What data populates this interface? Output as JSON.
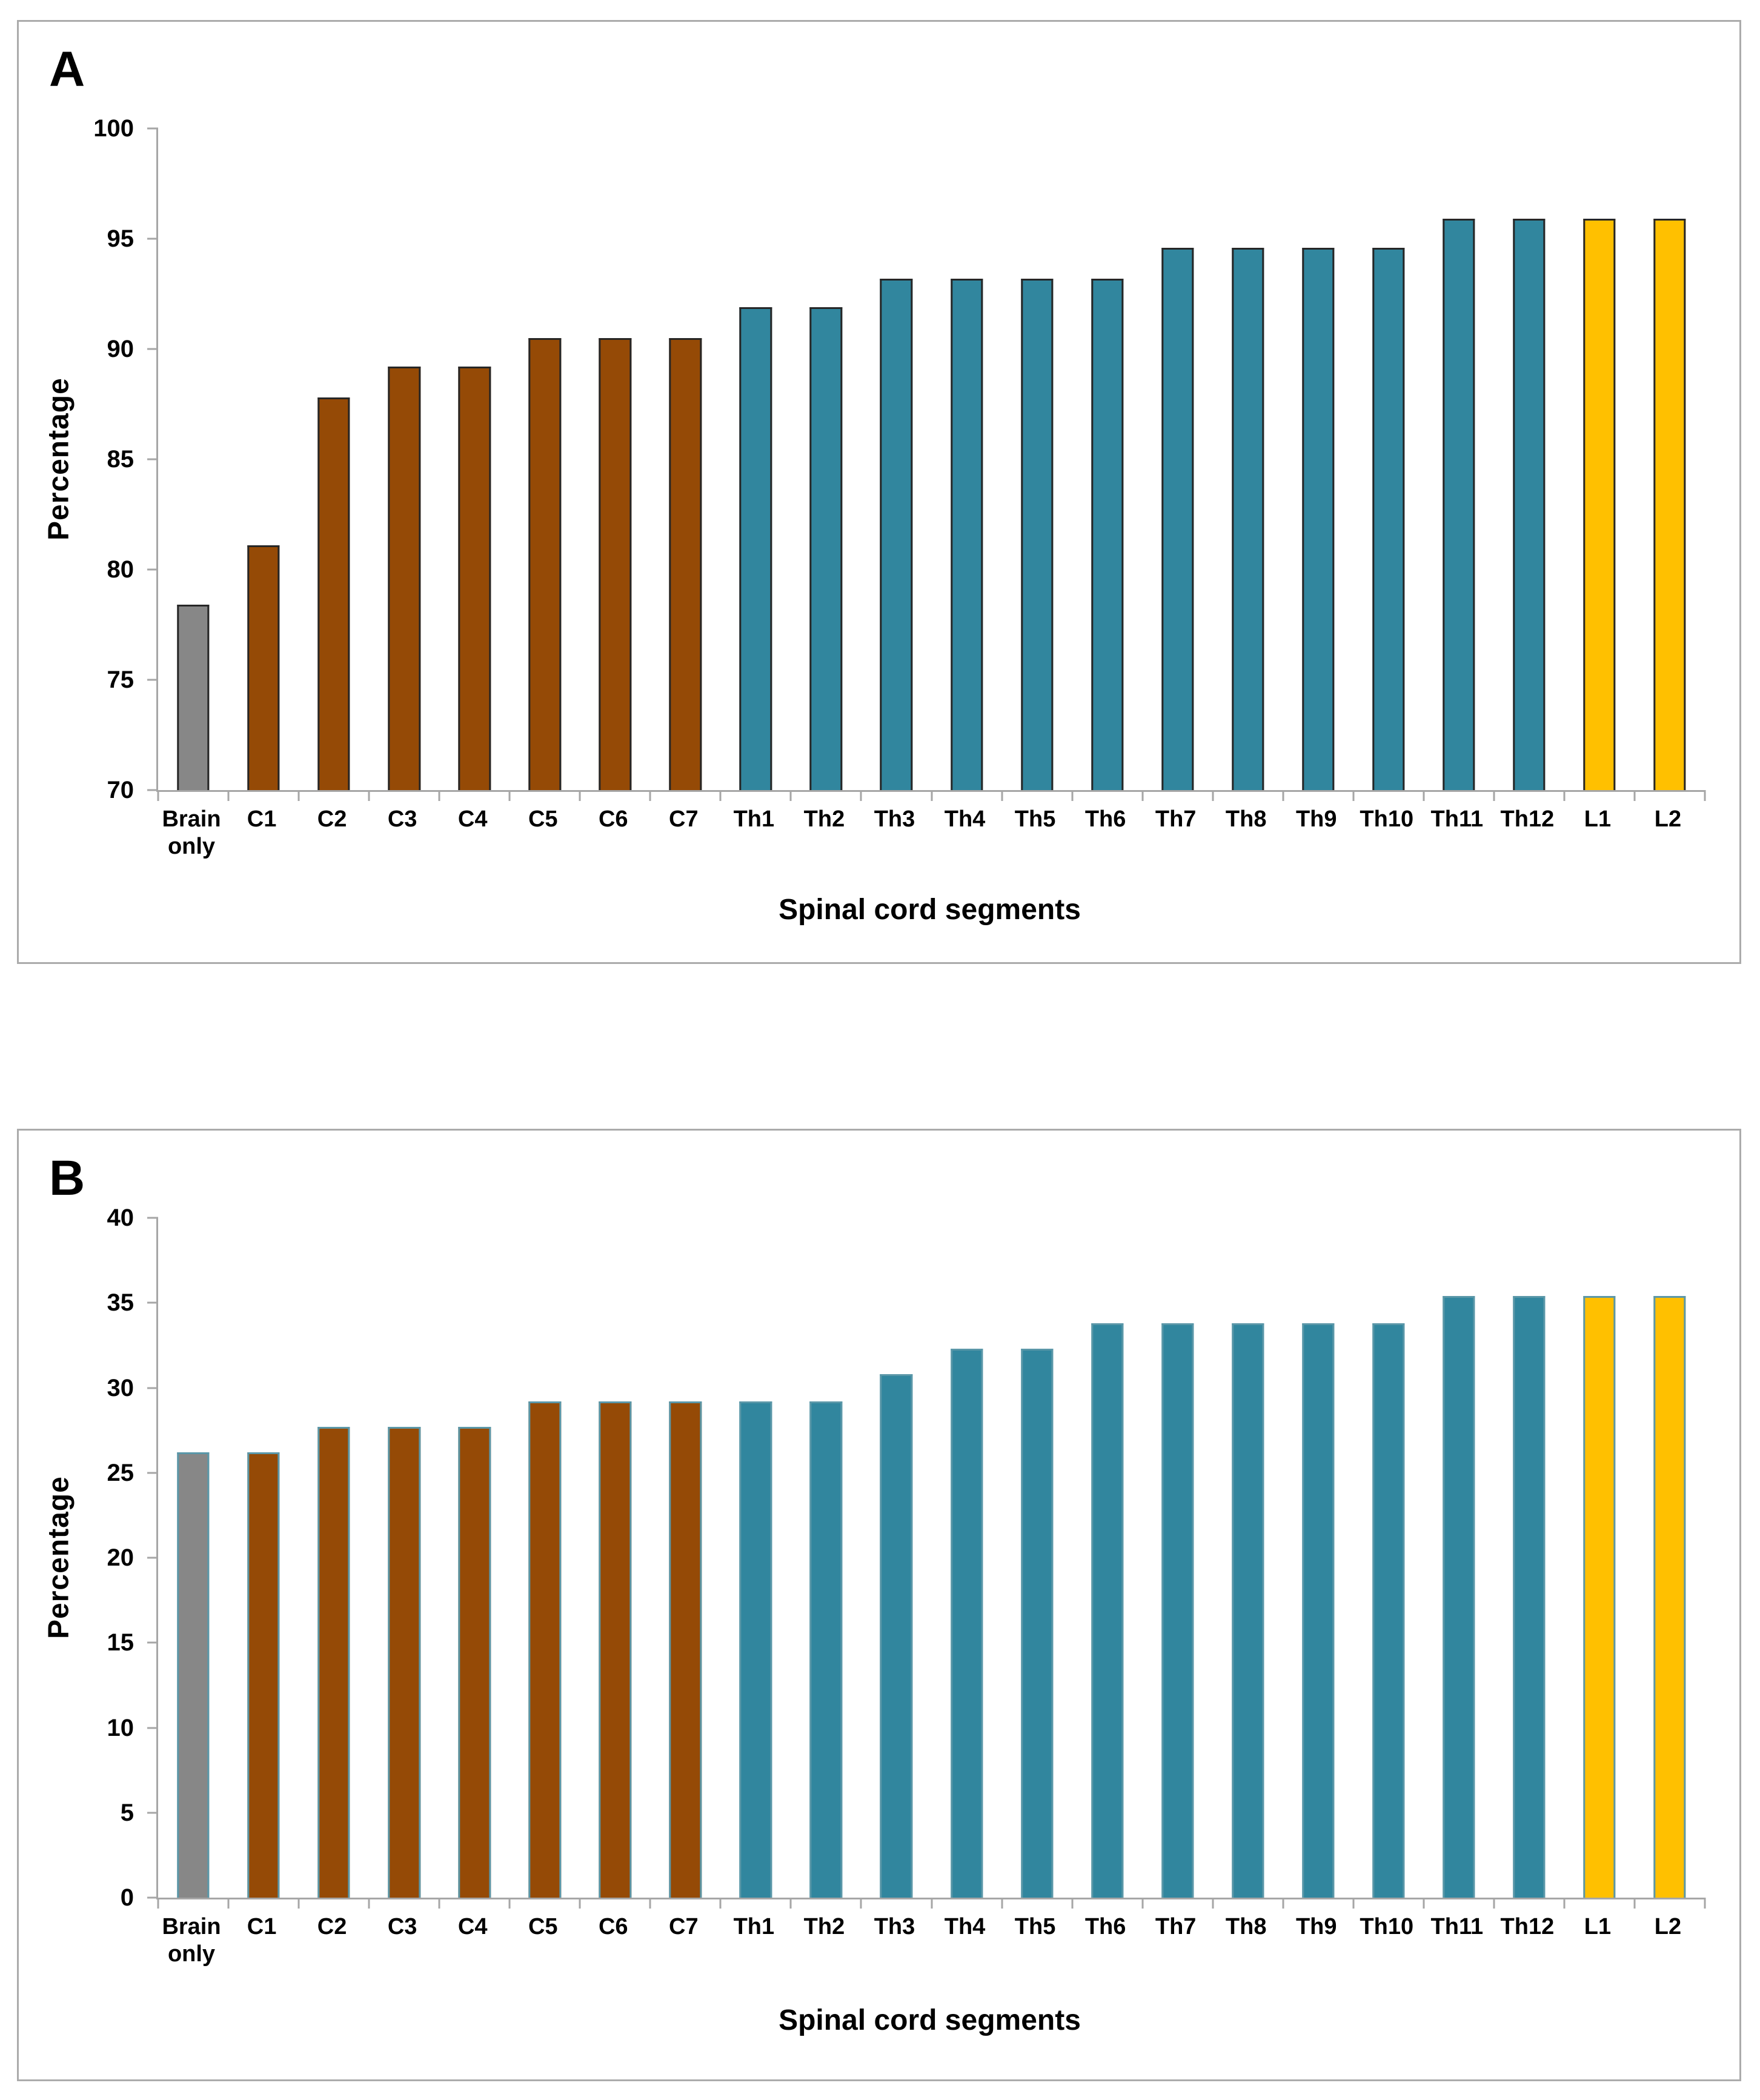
{
  "colors": {
    "brain_fill": "#878787",
    "cervical_fill": "#954a06",
    "thoracic_fill": "#31869e",
    "lumbar_fill": "#ffc000",
    "bar_border_panel_a": "#262626",
    "bar_border_panel_b": "#5a97a8",
    "axis_line": "#a6a6a6",
    "panel_border": "#ababab"
  },
  "chart_data": [
    {
      "panel_label": "A",
      "type": "bar",
      "title": "",
      "xlabel": "Spinal cord segments",
      "ylabel": "Percentage",
      "ylim": [
        70,
        100
      ],
      "yticks": [
        70,
        75,
        80,
        85,
        90,
        95,
        100
      ],
      "grid": false,
      "legend": "none",
      "bar_border_color": "#262626",
      "categories": [
        "Brain only",
        "C1",
        "C2",
        "C3",
        "C4",
        "C5",
        "C6",
        "C7",
        "Th1",
        "Th2",
        "Th3",
        "Th4",
        "Th5",
        "Th6",
        "Th7",
        "Th8",
        "Th9",
        "Th10",
        "Th11",
        "Th12",
        "L1",
        "L2"
      ],
      "values": [
        78.4,
        81.1,
        87.8,
        89.2,
        89.2,
        90.5,
        90.5,
        90.5,
        91.9,
        91.9,
        93.2,
        93.2,
        93.2,
        93.2,
        94.6,
        94.6,
        94.6,
        94.6,
        95.9,
        95.9,
        95.9,
        95.9
      ],
      "color_groups": [
        "brain",
        "cervical",
        "cervical",
        "cervical",
        "cervical",
        "cervical",
        "cervical",
        "cervical",
        "thoracic",
        "thoracic",
        "thoracic",
        "thoracic",
        "thoracic",
        "thoracic",
        "thoracic",
        "thoracic",
        "thoracic",
        "thoracic",
        "thoracic",
        "thoracic",
        "lumbar",
        "lumbar"
      ],
      "palette": {
        "brain": "#878787",
        "cervical": "#954a06",
        "thoracic": "#31869e",
        "lumbar": "#ffc000"
      }
    },
    {
      "panel_label": "B",
      "type": "bar",
      "title": "",
      "xlabel": "Spinal cord segments",
      "ylabel": "Percentage",
      "ylim": [
        0,
        40
      ],
      "yticks": [
        0,
        5,
        10,
        15,
        20,
        25,
        30,
        35,
        40
      ],
      "grid": false,
      "legend": "none",
      "bar_border_color": "#5a97a8",
      "categories": [
        "Brain only",
        "C1",
        "C2",
        "C3",
        "C4",
        "C5",
        "C6",
        "C7",
        "Th1",
        "Th2",
        "Th3",
        "Th4",
        "Th5",
        "Th6",
        "Th7",
        "Th8",
        "Th9",
        "Th10",
        "Th11",
        "Th12",
        "L1",
        "L2"
      ],
      "values": [
        26.2,
        26.2,
        27.7,
        27.7,
        27.7,
        29.2,
        29.2,
        29.2,
        29.2,
        29.2,
        30.8,
        32.3,
        32.3,
        33.8,
        33.8,
        33.8,
        33.8,
        33.8,
        35.4,
        35.4,
        35.4,
        35.4
      ],
      "color_groups": [
        "brain",
        "cervical",
        "cervical",
        "cervical",
        "cervical",
        "cervical",
        "cervical",
        "cervical",
        "thoracic",
        "thoracic",
        "thoracic",
        "thoracic",
        "thoracic",
        "thoracic",
        "thoracic",
        "thoracic",
        "thoracic",
        "thoracic",
        "thoracic",
        "thoracic",
        "lumbar",
        "lumbar"
      ],
      "palette": {
        "brain": "#878787",
        "cervical": "#954a06",
        "thoracic": "#31869e",
        "lumbar": "#ffc000"
      }
    }
  ]
}
